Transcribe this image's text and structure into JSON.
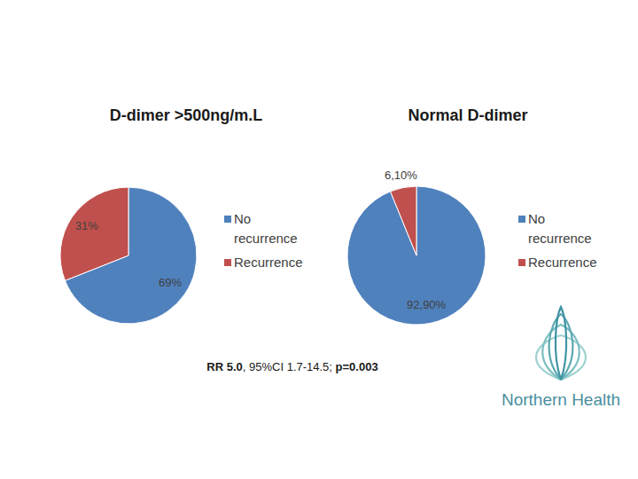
{
  "chart_data": [
    {
      "type": "pie",
      "title": "D-dimer >500ng/m.L",
      "categories": [
        "No recurrence",
        "Recurrence"
      ],
      "values": [
        69,
        31
      ],
      "value_labels": [
        "69%",
        "31%"
      ],
      "colors": [
        "#4f81bd",
        "#c0504d"
      ],
      "data_labels": true,
      "legend": "right"
    },
    {
      "type": "pie",
      "title": "Normal D-dimer",
      "categories": [
        "No recurrence",
        "Recurrence"
      ],
      "values": [
        92.9,
        6.1
      ],
      "value_labels": [
        "92,90%",
        "6,10%"
      ],
      "colors": [
        "#4f81bd",
        "#c0504d"
      ],
      "data_labels": true,
      "legend": "right"
    }
  ],
  "annotation": [
    "RR 5.0",
    ", 95%CI 1.7-14.5; ",
    "p=0.003"
  ],
  "logo_text": "Northern Health"
}
